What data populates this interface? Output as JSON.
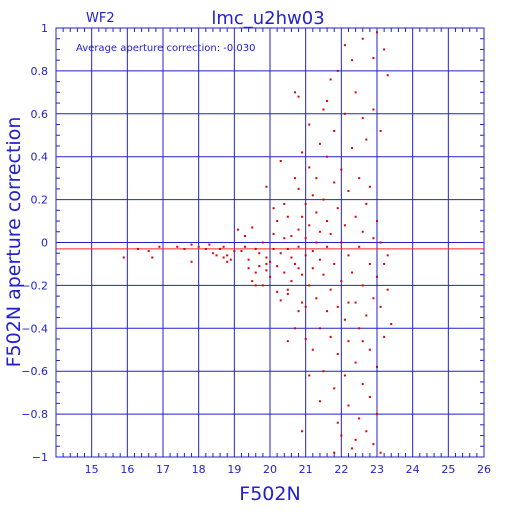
{
  "header": {
    "chip": "WF2",
    "title": "lmc_u2hw03"
  },
  "annotation": "Average aperture correction: -0.030",
  "chart_data": {
    "type": "scatter",
    "title": "lmc_u2hw03",
    "subtitle": "WF2",
    "xlabel": "F502N",
    "ylabel": "F502N aperture correction",
    "xlim": [
      14,
      26
    ],
    "ylim": [
      -1,
      1
    ],
    "x_ticks": [
      15,
      16,
      17,
      18,
      19,
      20,
      21,
      22,
      23,
      24,
      25,
      26
    ],
    "y_ticks": [
      -1,
      -0.8,
      -0.6,
      -0.4,
      -0.2,
      0,
      0.2,
      0.4,
      0.6,
      0.8,
      1
    ],
    "y_tick_labels": [
      "−1",
      "−0.8",
      "−0.6",
      "−0.4",
      "−0.2",
      "0",
      "0.2",
      "0.4",
      "0.6",
      "0.8",
      "1"
    ],
    "grid": true,
    "reference_lines": [
      {
        "y": 0,
        "color": "#2222cc"
      },
      {
        "y": -0.03,
        "color": "#ff2222"
      }
    ],
    "colors": {
      "axes": "#2222cc",
      "points": "#dd0000",
      "mean_line": "#ff2222"
    },
    "points": [
      [
        15.9,
        -0.07
      ],
      [
        16.3,
        -0.03
      ],
      [
        16.6,
        -0.04
      ],
      [
        16.7,
        -0.07
      ],
      [
        16.9,
        -0.02
      ],
      [
        17.4,
        -0.02
      ],
      [
        17.6,
        -0.03
      ],
      [
        17.8,
        -0.01
      ],
      [
        17.8,
        -0.09
      ],
      [
        18.0,
        -0.02
      ],
      [
        18.2,
        -0.03
      ],
      [
        18.3,
        -0.01
      ],
      [
        18.4,
        -0.05
      ],
      [
        18.5,
        -0.06
      ],
      [
        18.6,
        -0.03
      ],
      [
        18.7,
        -0.02
      ],
      [
        18.8,
        -0.06
      ],
      [
        18.8,
        -0.09
      ],
      [
        18.9,
        -0.08
      ],
      [
        19.0,
        -0.04
      ],
      [
        19.1,
        0.06
      ],
      [
        19.2,
        -0.04
      ],
      [
        19.3,
        -0.02
      ],
      [
        19.3,
        0.03
      ],
      [
        19.4,
        -0.08
      ],
      [
        19.4,
        -0.12
      ],
      [
        19.5,
        0.07
      ],
      [
        19.5,
        -0.18
      ],
      [
        19.6,
        -0.14
      ],
      [
        19.6,
        -0.03
      ],
      [
        19.7,
        -0.05
      ],
      [
        19.7,
        -0.11
      ],
      [
        19.8,
        0.0
      ],
      [
        19.8,
        -0.2
      ],
      [
        19.9,
        -0.13
      ],
      [
        19.9,
        -0.07
      ],
      [
        19.9,
        0.26
      ],
      [
        20.0,
        -0.09
      ],
      [
        20.0,
        -0.16
      ],
      [
        20.1,
        0.16
      ],
      [
        20.1,
        0.04
      ],
      [
        20.1,
        -0.03
      ],
      [
        20.2,
        -0.11
      ],
      [
        20.2,
        -0.23
      ],
      [
        20.2,
        0.1
      ],
      [
        20.3,
        -0.27
      ],
      [
        20.3,
        0.38
      ],
      [
        20.3,
        -0.05
      ],
      [
        20.4,
        0.18
      ],
      [
        20.4,
        0.02
      ],
      [
        20.4,
        -0.14
      ],
      [
        20.5,
        -0.03
      ],
      [
        20.5,
        0.12
      ],
      [
        20.5,
        -0.46
      ],
      [
        20.5,
        -0.24
      ],
      [
        20.6,
        0.03
      ],
      [
        20.6,
        -0.07
      ],
      [
        20.6,
        -0.18
      ],
      [
        20.7,
        0.3
      ],
      [
        20.7,
        0.7
      ],
      [
        20.7,
        -0.1
      ],
      [
        20.7,
        -0.4
      ],
      [
        20.8,
        0.68
      ],
      [
        20.8,
        0.06
      ],
      [
        20.8,
        -0.02
      ],
      [
        20.8,
        -0.32
      ],
      [
        20.8,
        0.25
      ],
      [
        20.9,
        -0.15
      ],
      [
        20.9,
        0.42
      ],
      [
        20.9,
        0.12
      ],
      [
        20.9,
        -0.28
      ],
      [
        20.9,
        -0.88
      ],
      [
        21.0,
        0.18
      ],
      [
        21.0,
        -0.06
      ],
      [
        21.0,
        -0.45
      ],
      [
        21.0,
        0.02
      ],
      [
        21.1,
        0.55
      ],
      [
        21.1,
        0.08
      ],
      [
        21.1,
        -0.2
      ],
      [
        21.1,
        0.35
      ],
      [
        21.2,
        -0.12
      ],
      [
        21.2,
        0.22
      ],
      [
        21.2,
        -0.5
      ],
      [
        21.2,
        -0.04
      ],
      [
        21.3,
        0.3
      ],
      [
        21.3,
        0.0
      ],
      [
        21.3,
        -0.26
      ],
      [
        21.3,
        0.14
      ],
      [
        21.4,
        -0.4
      ],
      [
        21.4,
        0.46
      ],
      [
        21.4,
        0.05
      ],
      [
        21.4,
        -0.08
      ],
      [
        21.5,
        0.62
      ],
      [
        21.5,
        -0.15
      ],
      [
        21.5,
        0.2
      ],
      [
        21.5,
        -0.6
      ],
      [
        21.6,
        -0.02
      ],
      [
        21.6,
        -0.32
      ],
      [
        21.6,
        0.4
      ],
      [
        21.6,
        0.1
      ],
      [
        21.7,
        -0.22
      ],
      [
        21.7,
        0.76
      ],
      [
        21.7,
        -0.44
      ],
      [
        21.7,
        0.04
      ],
      [
        21.8,
        0.28
      ],
      [
        21.8,
        -0.1
      ],
      [
        21.8,
        -0.68
      ],
      [
        21.8,
        0.52
      ],
      [
        21.9,
        -0.3
      ],
      [
        21.9,
        0.16
      ],
      [
        21.9,
        -0.52
      ],
      [
        21.9,
        -0.84
      ],
      [
        22.0,
        0.0
      ],
      [
        22.0,
        0.34
      ],
      [
        22.0,
        -0.18
      ],
      [
        22.0,
        -0.9
      ],
      [
        22.1,
        0.6
      ],
      [
        22.1,
        -0.36
      ],
      [
        22.1,
        0.08
      ],
      [
        22.1,
        -0.62
      ],
      [
        22.2,
        -0.06
      ],
      [
        22.2,
        0.24
      ],
      [
        22.2,
        -0.46
      ],
      [
        22.2,
        -0.76
      ],
      [
        22.3,
        0.85
      ],
      [
        22.3,
        -0.14
      ],
      [
        22.3,
        0.44
      ],
      [
        22.3,
        -0.96
      ],
      [
        22.4,
        -0.28
      ],
      [
        22.4,
        0.12
      ],
      [
        22.4,
        -0.56
      ],
      [
        22.4,
        0.7
      ],
      [
        22.5,
        -0.02
      ],
      [
        22.5,
        -0.4
      ],
      [
        22.5,
        0.3
      ],
      [
        22.5,
        -0.82
      ],
      [
        22.6,
        -0.2
      ],
      [
        22.6,
        0.58
      ],
      [
        22.6,
        -0.66
      ],
      [
        22.6,
        0.05
      ],
      [
        22.7,
        -0.34
      ],
      [
        22.7,
        0.18
      ],
      [
        22.7,
        -0.88
      ],
      [
        22.7,
        0.48
      ],
      [
        22.8,
        -0.1
      ],
      [
        22.8,
        -0.5
      ],
      [
        22.8,
        0.26
      ],
      [
        22.8,
        -0.72
      ],
      [
        22.9,
        -0.26
      ],
      [
        22.9,
        0.02
      ],
      [
        22.9,
        -0.94
      ],
      [
        22.9,
        0.62
      ],
      [
        23.0,
        -0.16
      ],
      [
        23.0,
        -0.58
      ],
      [
        23.0,
        0.1
      ],
      [
        23.0,
        -0.8
      ],
      [
        23.1,
        0.0
      ],
      [
        23.1,
        -0.3
      ],
      [
        23.1,
        0.52
      ],
      [
        23.1,
        -0.98
      ],
      [
        23.2,
        0.9
      ],
      [
        23.2,
        -0.1
      ],
      [
        23.2,
        -0.44
      ],
      [
        23.3,
        0.78
      ],
      [
        23.3,
        -0.06
      ],
      [
        23.3,
        -0.22
      ],
      [
        23.4,
        -0.38
      ],
      [
        22.1,
        0.92
      ],
      [
        22.6,
        0.95
      ],
      [
        21.9,
        0.8
      ],
      [
        23.0,
        0.98
      ],
      [
        22.9,
        0.86
      ],
      [
        21.6,
        0.66
      ],
      [
        21.8,
        -0.98
      ],
      [
        22.4,
        -0.92
      ],
      [
        21.0,
        -0.3
      ],
      [
        20.5,
        -0.22
      ],
      [
        19.9,
        -0.1
      ],
      [
        19.6,
        -0.2
      ],
      [
        18.7,
        -0.07
      ],
      [
        21.4,
        -0.74
      ],
      [
        21.1,
        -0.62
      ],
      [
        22.2,
        -0.28
      ],
      [
        22.6,
        -0.46
      ],
      [
        20.8,
        -0.12
      ]
    ]
  }
}
